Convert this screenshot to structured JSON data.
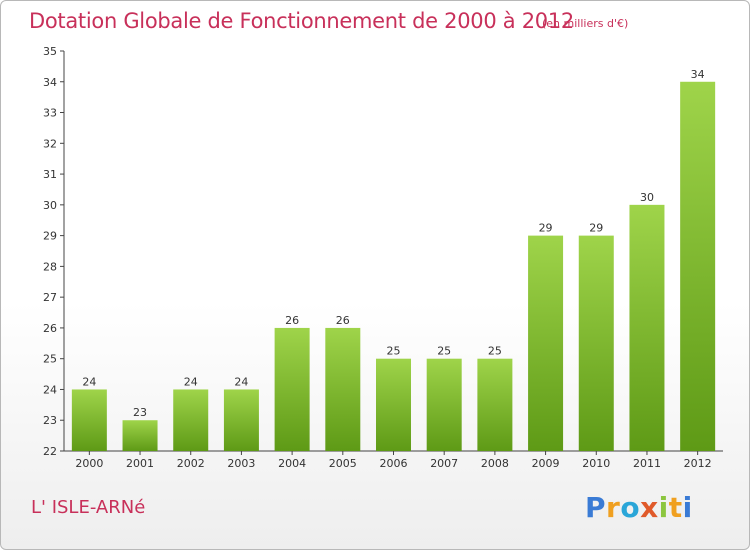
{
  "header": {
    "title": "Dotation Globale de Fonctionnement de 2000 à 2012",
    "subtitle": "(en milliers d'€)"
  },
  "footer": {
    "commune": "L' ISLE-ARNé",
    "logo_text": "Proxiti"
  },
  "colors": {
    "title": "#c8305a",
    "bar_top": "#9fd44a",
    "bar_bottom": "#5e9a16"
  },
  "chart_data": {
    "type": "bar",
    "categories": [
      "2000",
      "2001",
      "2002",
      "2003",
      "2004",
      "2005",
      "2006",
      "2007",
      "2008",
      "2009",
      "2010",
      "2011",
      "2012"
    ],
    "values": [
      24,
      23,
      24,
      24,
      26,
      26,
      25,
      25,
      25,
      29,
      29,
      30,
      34
    ],
    "ylim": [
      22,
      35
    ],
    "yticks": [
      22,
      23,
      24,
      25,
      26,
      27,
      28,
      29,
      30,
      31,
      32,
      33,
      34,
      35
    ],
    "grid": false,
    "data_labels": true
  }
}
